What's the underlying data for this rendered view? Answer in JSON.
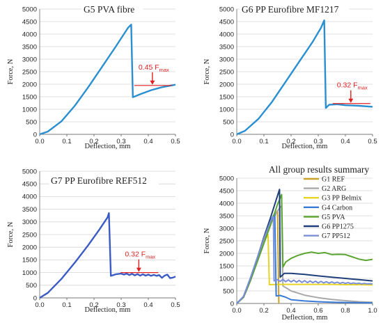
{
  "chart_data": [
    {
      "type": "line",
      "title": "G5 PVA fibre",
      "xlabel": "Deflection, mm",
      "ylabel": "Force, N",
      "xlim": [
        0,
        0.5
      ],
      "ylim": [
        0,
        5000
      ],
      "xticks": [
        "0.0",
        "0.1",
        "0.2",
        "0.3",
        "0.4",
        "0.5"
      ],
      "yticks": [
        "0",
        "500",
        "1000",
        "1500",
        "2000",
        "2500",
        "3000",
        "3500",
        "4000",
        "4500",
        "5000"
      ],
      "annotation": {
        "text": "0.45 F",
        "sub": "max",
        "level": 1950,
        "x": 0.415
      },
      "series": [
        {
          "color": "#2a8fd0",
          "x": [
            0,
            0.03,
            0.08,
            0.13,
            0.18,
            0.23,
            0.28,
            0.325,
            0.337,
            0.343,
            0.37,
            0.41,
            0.45,
            0.5
          ],
          "y": [
            0,
            110,
            520,
            1150,
            1900,
            2700,
            3500,
            4250,
            4380,
            1480,
            1600,
            1760,
            1880,
            1980
          ]
        }
      ]
    },
    {
      "type": "line",
      "title": "G6 PP Eurofibre MF1217",
      "xlabel": "Deflection, mm",
      "ylabel": "Force, N",
      "xlim": [
        0,
        0.5
      ],
      "ylim": [
        0,
        5000
      ],
      "xticks": [
        "0.0",
        "0.1",
        "0.2",
        "0.3",
        "0.4",
        "0.5"
      ],
      "yticks": [
        "0",
        "500",
        "1000",
        "1500",
        "2000",
        "2500",
        "3000",
        "3500",
        "4000",
        "4500",
        "5000"
      ],
      "annotation": {
        "text": "0.32 F",
        "sub": "max",
        "level": 1230,
        "x": 0.42
      },
      "series": [
        {
          "color": "#2a8fd0",
          "x": [
            0,
            0.03,
            0.08,
            0.13,
            0.18,
            0.23,
            0.28,
            0.31,
            0.322,
            0.328,
            0.34,
            0.37,
            0.4,
            0.45,
            0.5
          ],
          "y": [
            0,
            140,
            620,
            1300,
            2100,
            2900,
            3700,
            4250,
            4550,
            1050,
            1180,
            1200,
            1160,
            1140,
            1100
          ]
        }
      ]
    },
    {
      "type": "line",
      "title": "G7 PP Eurofibre REF512",
      "xlabel": "Deflection, mm",
      "ylabel": "Force, N",
      "xlim": [
        0,
        0.5
      ],
      "ylim": [
        0,
        5000
      ],
      "xticks": [
        "0.0",
        "0.1",
        "0.2",
        "0.3",
        "0.4",
        "0.5"
      ],
      "yticks": [
        "0",
        "500",
        "1000",
        "1500",
        "2000",
        "2500",
        "3000",
        "3500",
        "4000",
        "4500",
        "5000"
      ],
      "annotation": {
        "text": "0.32 F",
        "sub": "max",
        "level": 1000,
        "x": 0.365
      },
      "series": [
        {
          "color": "#3b5bc4",
          "x": [
            0,
            0.03,
            0.08,
            0.13,
            0.18,
            0.22,
            0.25,
            0.255,
            0.262,
            0.28,
            0.3,
            0.31,
            0.32,
            0.33,
            0.34,
            0.35,
            0.36,
            0.37,
            0.38,
            0.39,
            0.4,
            0.41,
            0.42,
            0.43,
            0.44,
            0.45,
            0.46,
            0.47,
            0.48,
            0.49,
            0.5
          ],
          "y": [
            0,
            200,
            750,
            1400,
            2100,
            2700,
            3180,
            3350,
            870,
            930,
            960,
            920,
            960,
            900,
            950,
            890,
            940,
            880,
            930,
            880,
            920,
            870,
            910,
            870,
            900,
            790,
            880,
            920,
            780,
            800,
            840
          ]
        }
      ]
    },
    {
      "type": "line",
      "title": "All group results summary",
      "xlabel": "Deflection, mm",
      "ylabel": "Force, N",
      "xlim": [
        0,
        1.0
      ],
      "ylim": [
        0,
        5000
      ],
      "xticks": [
        "0.0",
        "0.2",
        "0.4",
        "0.6",
        "0.8",
        "1.0"
      ],
      "yticks": [
        "0",
        "500",
        "1000",
        "1500",
        "2000",
        "2500",
        "3000",
        "3500",
        "4000",
        "4500",
        "5000"
      ],
      "series": [
        {
          "name": "G1 REF",
          "color": "#c9a227",
          "x": [
            0,
            0.05,
            0.1,
            0.15,
            0.2,
            0.25,
            0.28,
            0.3,
            0.31
          ],
          "y": [
            0,
            250,
            900,
            1700,
            2500,
            3200,
            3550,
            3700,
            0
          ]
        },
        {
          "name": "G2 ARG",
          "color": "#a9a9a9",
          "x": [
            0,
            0.05,
            0.1,
            0.15,
            0.2,
            0.25,
            0.3,
            0.33,
            0.34,
            0.4,
            0.5,
            0.6,
            0.7,
            0.8,
            0.9,
            1.0
          ],
          "y": [
            0,
            250,
            900,
            1700,
            2500,
            3200,
            3700,
            3900,
            700,
            500,
            330,
            230,
            160,
            110,
            70,
            50
          ]
        },
        {
          "name": "G3 PP Belmix",
          "color": "#e8d424",
          "x": [
            0,
            0.05,
            0.1,
            0.15,
            0.2,
            0.23,
            0.24,
            0.3,
            0.4,
            0.5,
            0.6,
            0.7,
            0.8,
            0.9,
            1.0
          ],
          "y": [
            0,
            280,
            950,
            1750,
            2450,
            2750,
            750,
            760,
            760,
            760,
            760,
            760,
            750,
            750,
            740
          ]
        },
        {
          "name": "G4 Carbon",
          "color": "#3a7bd5",
          "x": [
            0,
            0.05,
            0.1,
            0.15,
            0.2,
            0.25,
            0.28,
            0.29,
            0.32,
            0.36,
            0.4,
            0.5,
            0.6,
            0.7,
            0.8,
            0.9,
            1.0
          ],
          "y": [
            0,
            280,
            1000,
            1800,
            2600,
            3300,
            3600,
            300,
            320,
            250,
            150,
            100,
            70,
            50,
            40,
            30,
            20
          ]
        },
        {
          "name": "G5 PVA",
          "color": "#5aa532",
          "x": [
            0,
            0.05,
            0.1,
            0.15,
            0.2,
            0.25,
            0.3,
            0.33,
            0.34,
            0.36,
            0.4,
            0.45,
            0.5,
            0.55,
            0.6,
            0.65,
            0.7,
            0.75,
            0.8,
            0.85,
            0.9,
            0.95,
            1.0
          ],
          "y": [
            0,
            250,
            900,
            1650,
            2400,
            3150,
            3950,
            4350,
            1450,
            1650,
            1800,
            1920,
            2000,
            2050,
            2000,
            2030,
            1950,
            1960,
            1950,
            1860,
            1770,
            1720,
            1760
          ]
        },
        {
          "name": "G6 PP1275",
          "color": "#1f3f7a",
          "x": [
            0,
            0.05,
            0.1,
            0.15,
            0.2,
            0.25,
            0.3,
            0.315,
            0.32,
            0.35,
            0.4,
            0.5,
            0.6,
            0.7,
            0.8,
            0.9,
            1.0
          ],
          "y": [
            0,
            280,
            1000,
            1800,
            2650,
            3450,
            4300,
            4550,
            1050,
            1200,
            1200,
            1160,
            1100,
            1050,
            1000,
            950,
            900
          ]
        },
        {
          "name": "G7 PP512",
          "color": "#7b8fd6",
          "x": [
            0,
            0.05,
            0.1,
            0.15,
            0.2,
            0.25,
            0.27,
            0.275,
            0.3,
            0.32,
            0.34,
            0.36,
            0.38,
            0.4,
            0.42,
            0.44,
            0.46,
            0.48,
            0.5,
            0.52,
            0.54,
            0.56,
            0.58,
            0.6,
            0.62,
            0.64,
            0.66,
            0.68,
            0.7,
            0.72,
            0.74,
            0.76,
            0.78,
            0.8,
            0.82,
            0.84,
            0.86,
            0.88,
            0.9,
            0.92,
            0.94,
            0.96,
            0.98,
            1.0
          ],
          "y": [
            0,
            280,
            1000,
            1800,
            2600,
            3300,
            3450,
            900,
            950,
            880,
            960,
            870,
            940,
            860,
            930,
            850,
            920,
            840,
            910,
            830,
            900,
            830,
            890,
            820,
            880,
            820,
            870,
            810,
            860,
            810,
            850,
            800,
            840,
            800,
            830,
            790,
            820,
            790,
            810,
            780,
            800,
            780,
            790,
            780
          ]
        }
      ]
    }
  ]
}
